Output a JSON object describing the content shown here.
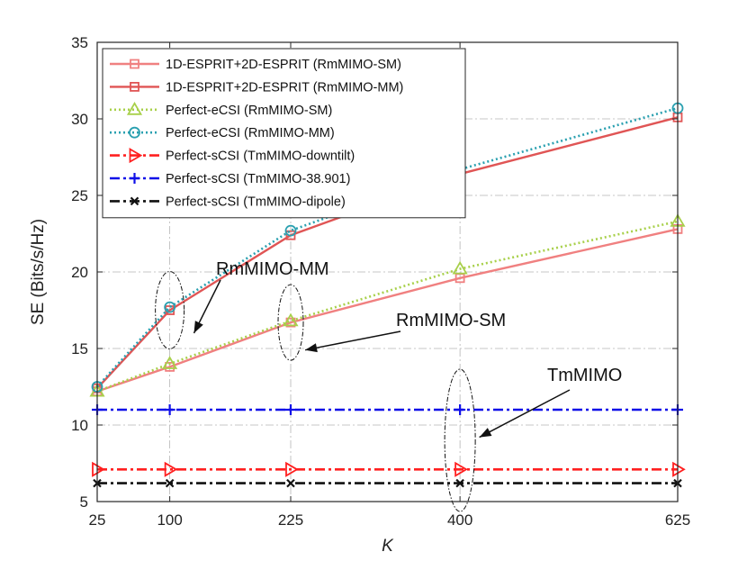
{
  "chart_data": {
    "type": "line",
    "xlabel": "K",
    "ylabel": "SE (Bits/s/Hz)",
    "x_ticks": [
      25,
      100,
      225,
      400,
      625
    ],
    "xlim": [
      25,
      625
    ],
    "ylim": [
      5,
      35
    ],
    "y_ticks": [
      5,
      10,
      15,
      20,
      25,
      30,
      35
    ],
    "grid": true,
    "legend_position": "top-left",
    "series": [
      {
        "name": "1D-ESPRIT+2D-ESPRIT (RmMIMO-SM)",
        "color": "#f08080",
        "dash": "solid",
        "marker": "square",
        "x": [
          25,
          100,
          225,
          400,
          625
        ],
        "values": [
          12.2,
          13.8,
          16.7,
          19.6,
          22.8
        ]
      },
      {
        "name": "1D-ESPRIT+2D-ESPRIT (RmMIMO-MM)",
        "color": "#e05555",
        "dash": "solid",
        "marker": "square",
        "x": [
          25,
          100,
          225,
          400,
          625
        ],
        "values": [
          12.4,
          17.5,
          22.4,
          26.4,
          30.1
        ]
      },
      {
        "name": "Perfect-eCSI (RmMIMO-SM)",
        "color": "#a8d04a",
        "dash": "dotted",
        "marker": "triangle",
        "x": [
          25,
          100,
          225,
          400,
          625
        ],
        "values": [
          12.2,
          14.0,
          16.8,
          20.2,
          23.3
        ]
      },
      {
        "name": "Perfect-eCSI (RmMIMO-MM)",
        "color": "#2aa0b0",
        "dash": "dotted",
        "marker": "circle",
        "x": [
          25,
          100,
          225,
          400,
          625
        ],
        "values": [
          12.5,
          17.7,
          22.7,
          26.7,
          30.7
        ]
      },
      {
        "name": "Perfect-sCSI (TmMIMO-downtilt)",
        "color": "#ff2020",
        "dash": "dashdot",
        "marker": "triangle-right",
        "x": [
          25,
          100,
          225,
          400,
          625
        ],
        "values": [
          7.1,
          7.1,
          7.1,
          7.1,
          7.1
        ]
      },
      {
        "name": "Perfect-sCSI (TmMIMO-38.901)",
        "color": "#1010e8",
        "dash": "dashdot",
        "marker": "plus",
        "x": [
          25,
          100,
          225,
          400,
          625
        ],
        "values": [
          11.0,
          11.0,
          11.0,
          11.0,
          11.0
        ]
      },
      {
        "name": "Perfect-sCSI (TmMIMO-dipole)",
        "color": "#111111",
        "dash": "dashdot",
        "marker": "x",
        "x": [
          25,
          100,
          225,
          400,
          625
        ],
        "values": [
          6.2,
          6.2,
          6.2,
          6.2,
          6.2
        ]
      }
    ],
    "annotations": [
      {
        "text": "RmMIMO-MM",
        "ellipse_center": [
          100,
          17.5
        ],
        "arrow_target": [
          125,
          16.0
        ]
      },
      {
        "text": "RmMIMO-SM",
        "ellipse_center": [
          225,
          16.7
        ],
        "arrow_target": [
          240,
          14.9
        ]
      },
      {
        "text": "TmMIMO",
        "ellipse_center": [
          400,
          9.0
        ],
        "arrow_target": [
          420,
          9.2
        ]
      }
    ]
  }
}
